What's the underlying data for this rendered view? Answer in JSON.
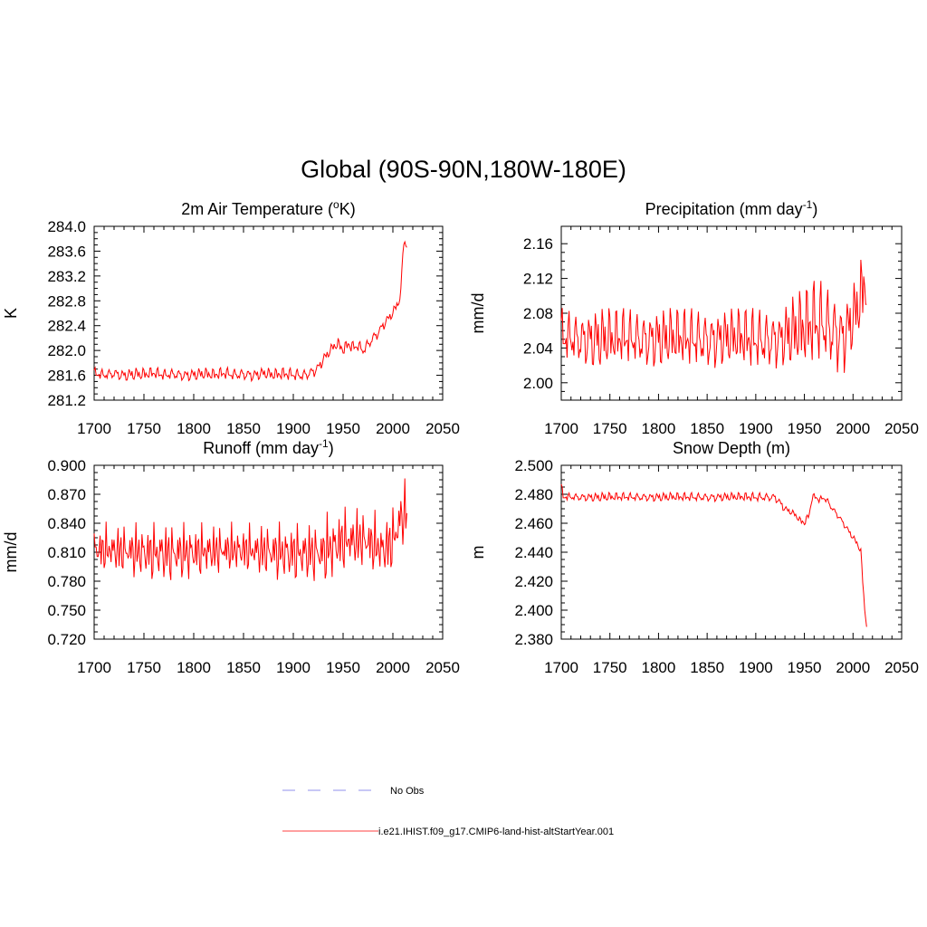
{
  "figure": {
    "title": "Global (90S-90N,180W-180E)"
  },
  "legend": {
    "entries": [
      {
        "label": "No Obs",
        "color": "#a8a8f0",
        "style": "dashed"
      },
      {
        "label": "i.e21.IHIST.f09_g17.CMIP6-land-hist-altStartYear.001",
        "color": "#ff0000",
        "style": "solid"
      }
    ]
  },
  "chart_data": [
    {
      "type": "line",
      "title": "2m Air Temperature (oK)",
      "title_main": "2m Air Temperature (",
      "title_sup": "o",
      "title_end": "K)",
      "ylabel": "K",
      "xlim": [
        1700,
        2050
      ],
      "ylim": [
        281.2,
        284.0
      ],
      "xticks": [
        1700,
        1750,
        1800,
        1850,
        1900,
        1950,
        2000,
        2050
      ],
      "xtick_labels": [
        "1700",
        "1750",
        "1800",
        "1850",
        "1900",
        "1950",
        "2000",
        "2050"
      ],
      "yticks": [
        281.2,
        281.6,
        282.0,
        282.4,
        282.8,
        283.2,
        283.6,
        284.0
      ],
      "ytick_labels": [
        "281.2",
        "281.6",
        "282.0",
        "282.4",
        "282.8",
        "283.2",
        "283.6",
        "284.0"
      ],
      "series": [
        {
          "color": "#ff0000",
          "x": [
            1700,
            1710,
            1720,
            1730,
            1740,
            1750,
            1760,
            1770,
            1780,
            1790,
            1800,
            1810,
            1820,
            1830,
            1840,
            1850,
            1860,
            1870,
            1880,
            1890,
            1900,
            1910,
            1920,
            1925,
            1930,
            1935,
            1940,
            1945,
            1950,
            1955,
            1960,
            1965,
            1970,
            1975,
            1980,
            1985,
            1990,
            1995,
            2000,
            2005,
            2008,
            2010,
            2012,
            2014
          ],
          "y": [
            281.62,
            281.6,
            281.63,
            281.6,
            281.62,
            281.61,
            281.63,
            281.6,
            281.62,
            281.6,
            281.61,
            281.62,
            281.6,
            281.63,
            281.61,
            281.62,
            281.6,
            281.63,
            281.6,
            281.62,
            281.61,
            281.6,
            281.66,
            281.72,
            281.85,
            281.95,
            282.05,
            282.1,
            282.0,
            282.1,
            282.05,
            282.08,
            282.0,
            282.1,
            282.2,
            282.28,
            282.4,
            282.5,
            282.6,
            282.75,
            282.9,
            283.6,
            283.75,
            283.72
          ]
        }
      ]
    },
    {
      "type": "line",
      "title": "Precipitation (mm day-1)",
      "title_main": "Precipitation (mm day",
      "title_sup": "-1",
      "title_end": ")",
      "ylabel": "mm/d",
      "xlim": [
        1700,
        2050
      ],
      "ylim": [
        1.98,
        2.18
      ],
      "xticks": [
        1700,
        1750,
        1800,
        1850,
        1900,
        1950,
        2000,
        2050
      ],
      "xtick_labels": [
        "1700",
        "1750",
        "1800",
        "1850",
        "1900",
        "1950",
        "2000",
        "2050"
      ],
      "yticks": [
        2.0,
        2.04,
        2.08,
        2.12,
        2.16
      ],
      "ytick_labels": [
        "2.00",
        "2.04",
        "2.08",
        "2.12",
        "2.16"
      ],
      "series": [
        {
          "color": "#ff0000",
          "x": [
            1700,
            1750,
            1800,
            1850,
            1900,
            1930,
            1950,
            1960,
            1970,
            1980,
            1990,
            2000,
            2010,
            2014
          ],
          "y": [
            2.05,
            2.05,
            2.05,
            2.05,
            2.05,
            2.05,
            2.06,
            2.07,
            2.07,
            2.06,
            2.05,
            2.07,
            2.1,
            2.12
          ]
        }
      ]
    },
    {
      "type": "line",
      "title": "Runoff (mm day-1)",
      "title_main": "Runoff (mm day",
      "title_sup": "-1",
      "title_end": ")",
      "ylabel": "mm/d",
      "xlim": [
        1700,
        2050
      ],
      "ylim": [
        0.72,
        0.9
      ],
      "xticks": [
        1700,
        1750,
        1800,
        1850,
        1900,
        1950,
        2000,
        2050
      ],
      "xtick_labels": [
        "1700",
        "1750",
        "1800",
        "1850",
        "1900",
        "1950",
        "2000",
        "2050"
      ],
      "yticks": [
        0.72,
        0.75,
        0.78,
        0.81,
        0.84,
        0.87,
        0.9
      ],
      "ytick_labels": [
        "0.720",
        "0.750",
        "0.780",
        "0.810",
        "0.840",
        "0.870",
        "0.900"
      ],
      "series": [
        {
          "color": "#ff0000",
          "x": [
            1700,
            1750,
            1800,
            1850,
            1900,
            1930,
            1950,
            1970,
            1990,
            2000,
            2010,
            2014
          ],
          "y": [
            0.81,
            0.81,
            0.81,
            0.81,
            0.81,
            0.81,
            0.82,
            0.82,
            0.81,
            0.82,
            0.85,
            0.85
          ]
        }
      ]
    },
    {
      "type": "line",
      "title": "Snow Depth (m)",
      "ylabel": "m",
      "xlim": [
        1700,
        2050
      ],
      "ylim": [
        2.38,
        2.5
      ],
      "xticks": [
        1700,
        1750,
        1800,
        1850,
        1900,
        1950,
        2000,
        2050
      ],
      "xtick_labels": [
        "1700",
        "1750",
        "1800",
        "1850",
        "1900",
        "1950",
        "2000",
        "2050"
      ],
      "yticks": [
        2.38,
        2.4,
        2.42,
        2.44,
        2.46,
        2.48,
        2.5
      ],
      "ytick_labels": [
        "2.380",
        "2.400",
        "2.420",
        "2.440",
        "2.460",
        "2.480",
        "2.500"
      ],
      "series": [
        {
          "color": "#ff0000",
          "x": [
            1700,
            1702,
            1710,
            1750,
            1800,
            1850,
            1900,
            1920,
            1925,
            1930,
            1935,
            1940,
            1945,
            1950,
            1955,
            1958,
            1962,
            1966,
            1970,
            1975,
            1980,
            1985,
            1990,
            1995,
            2000,
            2005,
            2008,
            2010,
            2012,
            2014
          ],
          "y": [
            2.485,
            2.478,
            2.478,
            2.478,
            2.478,
            2.478,
            2.478,
            2.478,
            2.474,
            2.47,
            2.468,
            2.466,
            2.462,
            2.46,
            2.466,
            2.478,
            2.478,
            2.476,
            2.478,
            2.474,
            2.469,
            2.465,
            2.46,
            2.455,
            2.45,
            2.445,
            2.44,
            2.42,
            2.4,
            2.39
          ]
        }
      ]
    }
  ]
}
